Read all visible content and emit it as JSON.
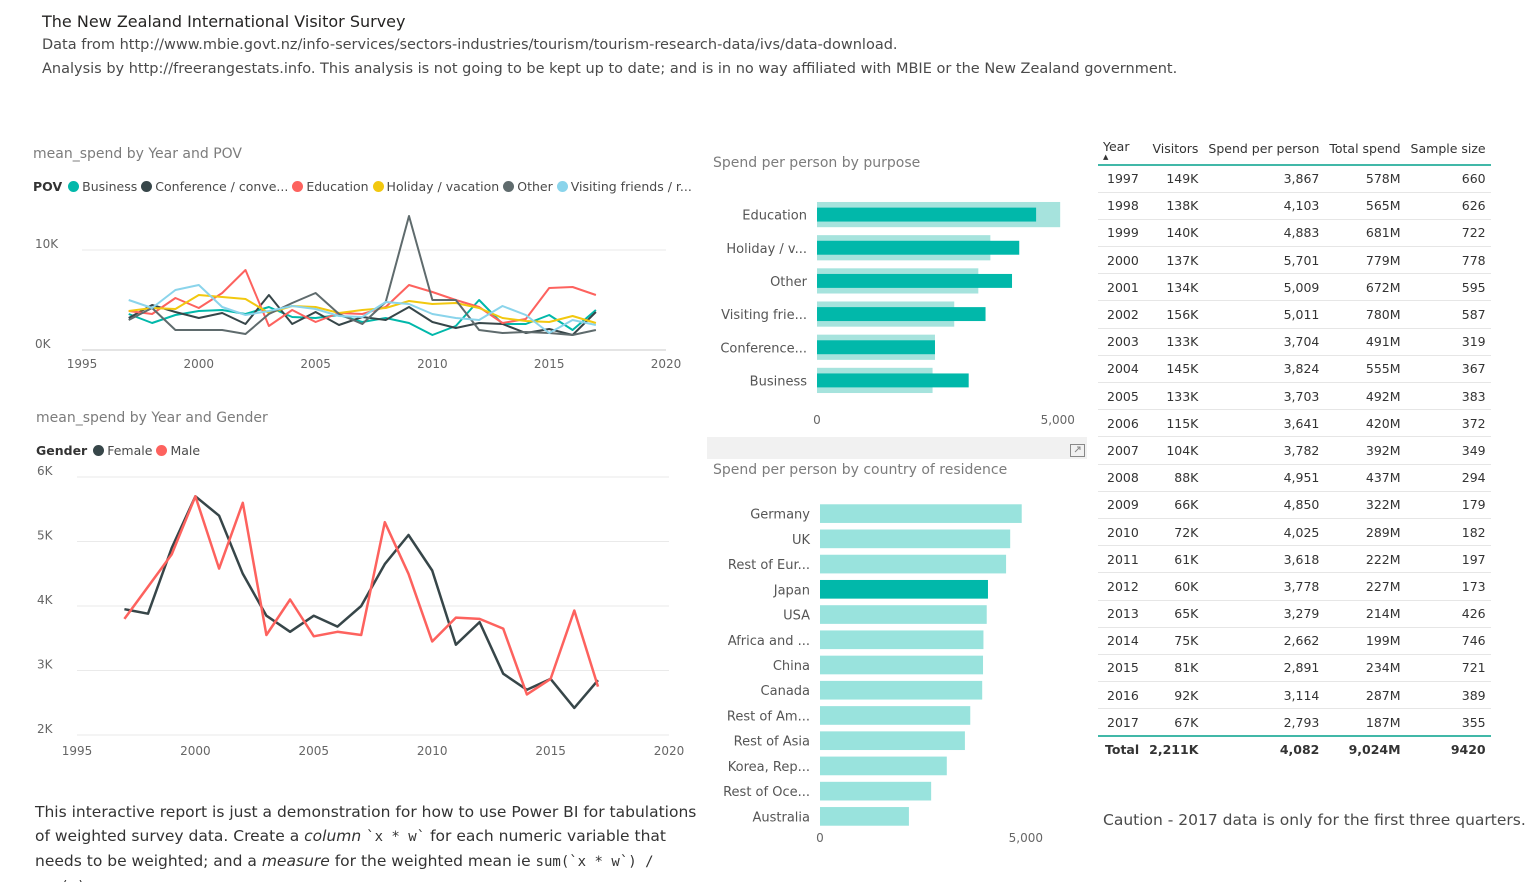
{
  "header": {
    "title": "The New Zealand International Visitor Survey",
    "line1": "Data from http://www.mbie.govt.nz/info-services/sectors-industries/tourism/tourism-research-data/ivs/data-download.",
    "line2": "Analysis by http://freerangestats.info.  This analysis is not going to be kept up to date; and is in no way affiliated with MBIE or the New Zealand government."
  },
  "visual_pov": {
    "title": "mean_spend by Year and POV",
    "legend_title": "POV",
    "legend": [
      {
        "label": "Business",
        "color": "#01B8AA"
      },
      {
        "label": "Conference / conve...",
        "color": "#374649"
      },
      {
        "label": "Education",
        "color": "#FD625E"
      },
      {
        "label": "Holiday / vacation",
        "color": "#F2C80F"
      },
      {
        "label": "Other",
        "color": "#5F6B6D"
      },
      {
        "label": "Visiting friends / r...",
        "color": "#8AD4EB"
      }
    ]
  },
  "visual_gender": {
    "title": "mean_spend by Year and Gender",
    "legend_title": "Gender",
    "legend": [
      {
        "label": "Female",
        "color": "#374649"
      },
      {
        "label": "Male",
        "color": "#FD625E"
      }
    ]
  },
  "visual_purpose": {
    "title": "Spend per person by purpose"
  },
  "visual_country": {
    "title": "Spend per person by country of residence"
  },
  "chart_data": [
    {
      "type": "line",
      "title": "mean_spend by Year and POV",
      "xlim": [
        1995,
        2020
      ],
      "xticks": [
        1995,
        2000,
        2005,
        2010,
        2015,
        2020
      ],
      "ylim": [
        0,
        14000
      ],
      "yticks": [
        {
          "v": 0,
          "label": "0K"
        },
        {
          "v": 10000,
          "label": "10K"
        }
      ],
      "x": [
        1997,
        1998,
        1999,
        2000,
        2001,
        2002,
        2003,
        2004,
        2005,
        2006,
        2007,
        2008,
        2009,
        2010,
        2011,
        2012,
        2013,
        2014,
        2015,
        2016,
        2017
      ],
      "series": [
        {
          "name": "Business",
          "color": "#01B8AA",
          "values": [
            3600,
            2700,
            3500,
            3900,
            4000,
            3600,
            4300,
            3300,
            3200,
            3500,
            2800,
            3200,
            2700,
            1500,
            2400,
            5000,
            2600,
            2600,
            3500,
            2000,
            4000
          ]
        },
        {
          "name": "Conference / conve...",
          "color": "#374649",
          "values": [
            3200,
            4500,
            3800,
            3200,
            3700,
            2600,
            5500,
            2600,
            3800,
            2500,
            3300,
            3000,
            4300,
            2800,
            2200,
            2700,
            2600,
            1700,
            2100,
            1500,
            3800
          ]
        },
        {
          "name": "Education",
          "color": "#FD625E",
          "values": [
            3900,
            3600,
            5200,
            4200,
            5700,
            8000,
            2400,
            4000,
            2800,
            3700,
            3600,
            4300,
            6500,
            5800,
            5000,
            4300,
            2700,
            3100,
            6200,
            6300,
            5500
          ]
        },
        {
          "name": "Holiday / vacation",
          "color": "#F2C80F",
          "values": [
            3900,
            4200,
            4100,
            5500,
            5300,
            5100,
            3700,
            4400,
            4300,
            3700,
            4000,
            4200,
            4900,
            4600,
            4700,
            4200,
            3200,
            2900,
            2800,
            3400,
            2700
          ]
        },
        {
          "name": "Other",
          "color": "#5F6B6D",
          "values": [
            3000,
            4200,
            2000,
            2000,
            2000,
            1600,
            3600,
            4700,
            5700,
            3600,
            2600,
            4800,
            13400,
            5000,
            5000,
            2000,
            1700,
            1800,
            1700,
            1500,
            2000
          ]
        },
        {
          "name": "Visiting friends / r...",
          "color": "#8AD4EB",
          "values": [
            5000,
            4200,
            6000,
            6500,
            4300,
            3500,
            3900,
            4400,
            4100,
            3400,
            3300,
            4800,
            4600,
            3600,
            3200,
            3000,
            4400,
            3500,
            1700,
            3000,
            2500
          ]
        }
      ]
    },
    {
      "type": "line",
      "title": "mean_spend by Year and Gender",
      "xlim": [
        1995,
        2020
      ],
      "xticks": [
        1995,
        2000,
        2005,
        2010,
        2015,
        2020
      ],
      "ylim": [
        2000,
        6000
      ],
      "yticks": [
        {
          "v": 2000,
          "label": "2K"
        },
        {
          "v": 3000,
          "label": "3K"
        },
        {
          "v": 4000,
          "label": "4K"
        },
        {
          "v": 5000,
          "label": "5K"
        },
        {
          "v": 6000,
          "label": "6K"
        }
      ],
      "x": [
        1997,
        1998,
        1999,
        2000,
        2001,
        2002,
        2003,
        2004,
        2005,
        2006,
        2007,
        2008,
        2009,
        2010,
        2011,
        2012,
        2013,
        2014,
        2015,
        2016,
        2017
      ],
      "series": [
        {
          "name": "Female",
          "color": "#374649",
          "values": [
            3950,
            3880,
            4900,
            5700,
            5400,
            4500,
            3850,
            3600,
            3850,
            3680,
            4000,
            4650,
            5100,
            4550,
            3400,
            3750,
            2950,
            2700,
            2870,
            2420,
            2850
          ]
        },
        {
          "name": "Male",
          "color": "#FD625E",
          "values": [
            3800,
            4300,
            4800,
            5700,
            4580,
            5600,
            3550,
            4100,
            3530,
            3600,
            3550,
            5300,
            4500,
            3450,
            3820,
            3800,
            3650,
            2630,
            2870,
            3930,
            2750
          ]
        }
      ]
    },
    {
      "type": "bar",
      "orientation": "horizontal",
      "title": "Spend per person by purpose",
      "categories": [
        "Education",
        "Holiday / v...",
        "Other",
        "Visiting frie...",
        "Conference...",
        "Business"
      ],
      "values": [
        4550,
        4200,
        4050,
        3500,
        2450,
        3150
      ],
      "background_values": [
        5050,
        3600,
        3350,
        2850,
        2450,
        2400
      ],
      "xlim": [
        0,
        6500
      ],
      "xticks": [
        {
          "v": 0,
          "label": "0"
        },
        {
          "v": 5000,
          "label": "5,000"
        }
      ]
    },
    {
      "type": "bar",
      "orientation": "horizontal",
      "title": "Spend per person by country of residence",
      "categories": [
        "Germany",
        "UK",
        "Rest of Eur...",
        "Japan",
        "USA",
        "Africa and ...",
        "China",
        "Canada",
        "Rest of Am...",
        "Rest of Asia",
        "Korea, Rep...",
        "Rest of Oce...",
        "Australia"
      ],
      "values": [
        4900,
        4620,
        4520,
        4080,
        4050,
        3970,
        3960,
        3940,
        3650,
        3520,
        3080,
        2700,
        2160
      ],
      "highlight": "Japan",
      "xlim": [
        0,
        6000
      ],
      "xticks": [
        {
          "v": 0,
          "label": "0"
        },
        {
          "v": 5000,
          "label": "5,000"
        }
      ]
    }
  ],
  "table": {
    "columns": [
      "Year",
      "Visitors",
      "Spend per person",
      "Total spend",
      "Sample size"
    ],
    "rows": [
      [
        "1997",
        "149K",
        "3,867",
        "578M",
        "660"
      ],
      [
        "1998",
        "138K",
        "4,103",
        "565M",
        "626"
      ],
      [
        "1999",
        "140K",
        "4,883",
        "681M",
        "722"
      ],
      [
        "2000",
        "137K",
        "5,701",
        "779M",
        "778"
      ],
      [
        "2001",
        "134K",
        "5,009",
        "672M",
        "595"
      ],
      [
        "2002",
        "156K",
        "5,011",
        "780M",
        "587"
      ],
      [
        "2003",
        "133K",
        "3,704",
        "491M",
        "319"
      ],
      [
        "2004",
        "145K",
        "3,824",
        "555M",
        "367"
      ],
      [
        "2005",
        "133K",
        "3,703",
        "492M",
        "383"
      ],
      [
        "2006",
        "115K",
        "3,641",
        "420M",
        "372"
      ],
      [
        "2007",
        "104K",
        "3,782",
        "392M",
        "349"
      ],
      [
        "2008",
        "88K",
        "4,951",
        "437M",
        "294"
      ],
      [
        "2009",
        "66K",
        "4,850",
        "322M",
        "179"
      ],
      [
        "2010",
        "72K",
        "4,025",
        "289M",
        "182"
      ],
      [
        "2011",
        "61K",
        "3,618",
        "222M",
        "197"
      ],
      [
        "2012",
        "60K",
        "3,778",
        "227M",
        "173"
      ],
      [
        "2013",
        "65K",
        "3,279",
        "214M",
        "426"
      ],
      [
        "2014",
        "75K",
        "2,662",
        "199M",
        "746"
      ],
      [
        "2015",
        "81K",
        "2,891",
        "234M",
        "721"
      ],
      [
        "2016",
        "92K",
        "3,114",
        "287M",
        "389"
      ],
      [
        "2017",
        "67K",
        "2,793",
        "187M",
        "355"
      ]
    ],
    "total": [
      "Total",
      "2,211K",
      "4,082",
      "9,024M",
      "9420"
    ],
    "sort_indicator": "▲"
  },
  "notes": {
    "part1": "This interactive report is just a demonstration for how to use Power BI for tabulations of weighted survey data.  Create a ",
    "part2": "column",
    "part3": " ",
    "part4": "`x * w`",
    "part5": " for each numeric variable that needs to be weighted; and a ",
    "part6": "measure",
    "part7": " for the weighted mean ie ",
    "part8": "sum(`x * w`) / sum(w)",
    "part9": "."
  },
  "caution": "Caution - 2017 data is only for the first three quarters.",
  "icons": {
    "expand": "expand-icon"
  }
}
